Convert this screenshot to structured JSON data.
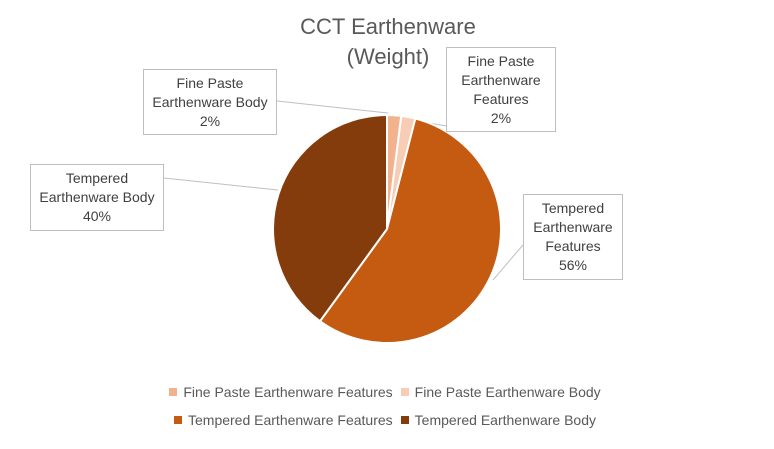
{
  "chart_data": {
    "type": "pie",
    "title": [
      "CCT Earthenware",
      "(Weight)"
    ],
    "slices": [
      {
        "name": "Fine Paste Earthenware Features",
        "value": 2,
        "label_lines": [
          "Fine Paste",
          "Earthenware",
          "Features",
          "2%"
        ],
        "color": "#f3b28e"
      },
      {
        "name": "Fine Paste Earthenware Body",
        "value": 2,
        "label_lines": [
          "Fine Paste",
          "Earthenware Body",
          "2%"
        ],
        "color": "#f7cdb5"
      },
      {
        "name": "Tempered Earthenware Features",
        "value": 56,
        "label_lines": [
          "Tempered",
          "Earthenware",
          "Features",
          "56%"
        ],
        "color": "#c55a11"
      },
      {
        "name": "Tempered Earthenware Body",
        "value": 40,
        "label_lines": [
          "Tempered",
          "Earthenware Body",
          "40%"
        ],
        "color": "#843c0c"
      }
    ],
    "legend_position": "bottom"
  }
}
